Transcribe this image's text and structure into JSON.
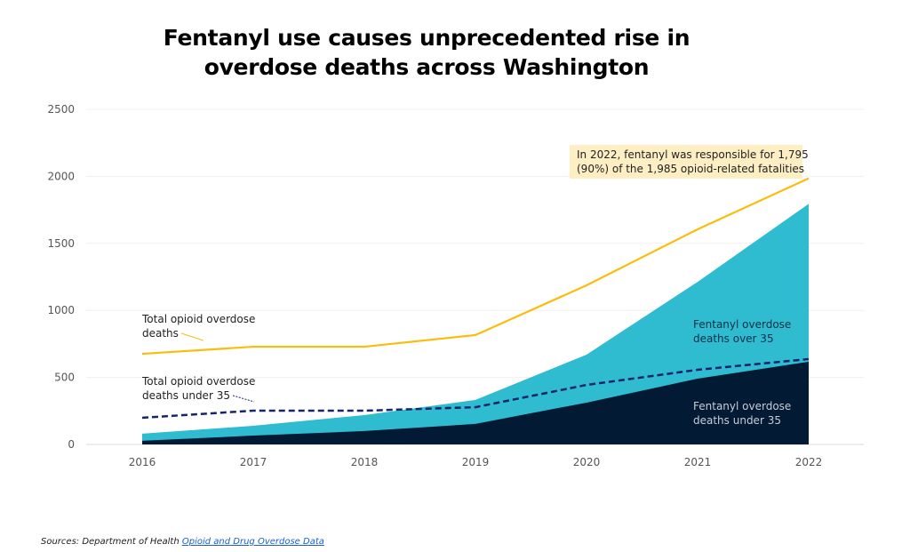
{
  "chart_data": {
    "type": "area",
    "title": "Fentanyl use causes unprecedented rise in overdose deaths across Washington",
    "xlabel": "",
    "ylabel": "",
    "x": [
      2016,
      2017,
      2018,
      2019,
      2020,
      2021,
      2022
    ],
    "ylim": [
      0,
      2500
    ],
    "yticks": [
      0,
      500,
      1000,
      1500,
      2000,
      2500
    ],
    "grid": true,
    "series": [
      {
        "name": "Fentanyl overdose deaths under 35",
        "kind": "stacked-area",
        "color": "#021a33",
        "values": [
          27,
          66,
          100,
          153,
          312,
          491,
          617
        ]
      },
      {
        "name": "Fentanyl overdose deaths over 35",
        "kind": "stacked-area",
        "color": "#2fbcd1",
        "values": [
          53,
          73,
          119,
          179,
          358,
          722,
          1178
        ]
      },
      {
        "name": "Total opioid overdose deaths",
        "kind": "line",
        "color": "#f9bd0c",
        "values": [
          676,
          729,
          729,
          816,
          1187,
          1605,
          1985
        ]
      },
      {
        "name": "Total opioid overdose deaths under 35",
        "kind": "dashed-line",
        "color": "#16246b",
        "values": [
          199,
          252,
          252,
          278,
          444,
          557,
          637
        ]
      }
    ],
    "annotation": {
      "line1": "In 2022, fentanyl was responsible for 1,795",
      "line2": "(90%) of the 1,985 opioid-related fatalities",
      "background": "#fdeec3"
    },
    "labels": {
      "total_l1": "Total opioid overdose",
      "total_l2": "deaths",
      "under_l1": "Total opioid overdose",
      "under_l2": "deaths under 35",
      "over35_l1": "Fentanyl overdose",
      "over35_l2": "deaths over 35",
      "fent_under_l1": "Fentanyl overdose",
      "fent_under_l2": "deaths under 35"
    }
  },
  "source": {
    "prefix": "Sources: Department of Health ",
    "link": "Opioid and Drug Overdose Data"
  }
}
